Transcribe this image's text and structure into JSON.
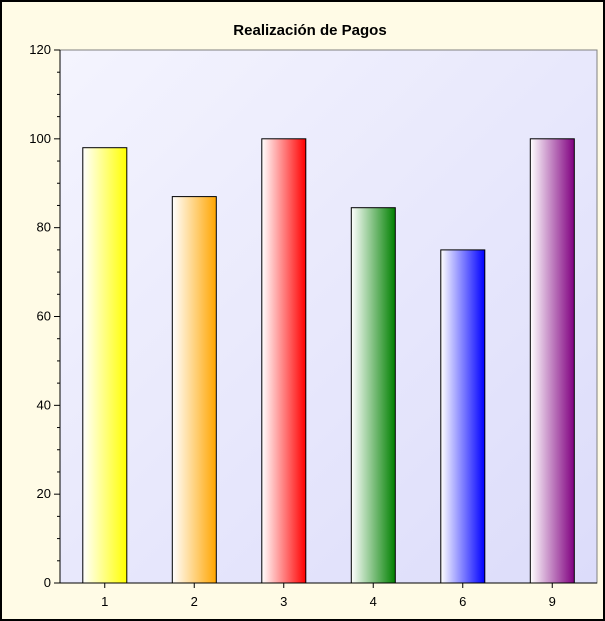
{
  "chart_data": {
    "type": "bar",
    "title": "Realización de Pagos",
    "xlabel": "",
    "ylabel": "",
    "categories": [
      "1",
      "2",
      "3",
      "4",
      "6",
      "9"
    ],
    "values": [
      98,
      87,
      100,
      84.5,
      75,
      100
    ],
    "ylim": [
      0,
      120
    ],
    "yticks": [
      0,
      20,
      40,
      60,
      80,
      100,
      120
    ],
    "grid": false,
    "legend": "none",
    "colors": [
      "#ffff00",
      "#ffa500",
      "#ff0000",
      "#008000",
      "#0000ff",
      "#800080"
    ],
    "background_colors": {
      "frame": "#fffbe6",
      "plot_from": "#f4f4fe",
      "plot_to": "#dcdcfa"
    }
  }
}
